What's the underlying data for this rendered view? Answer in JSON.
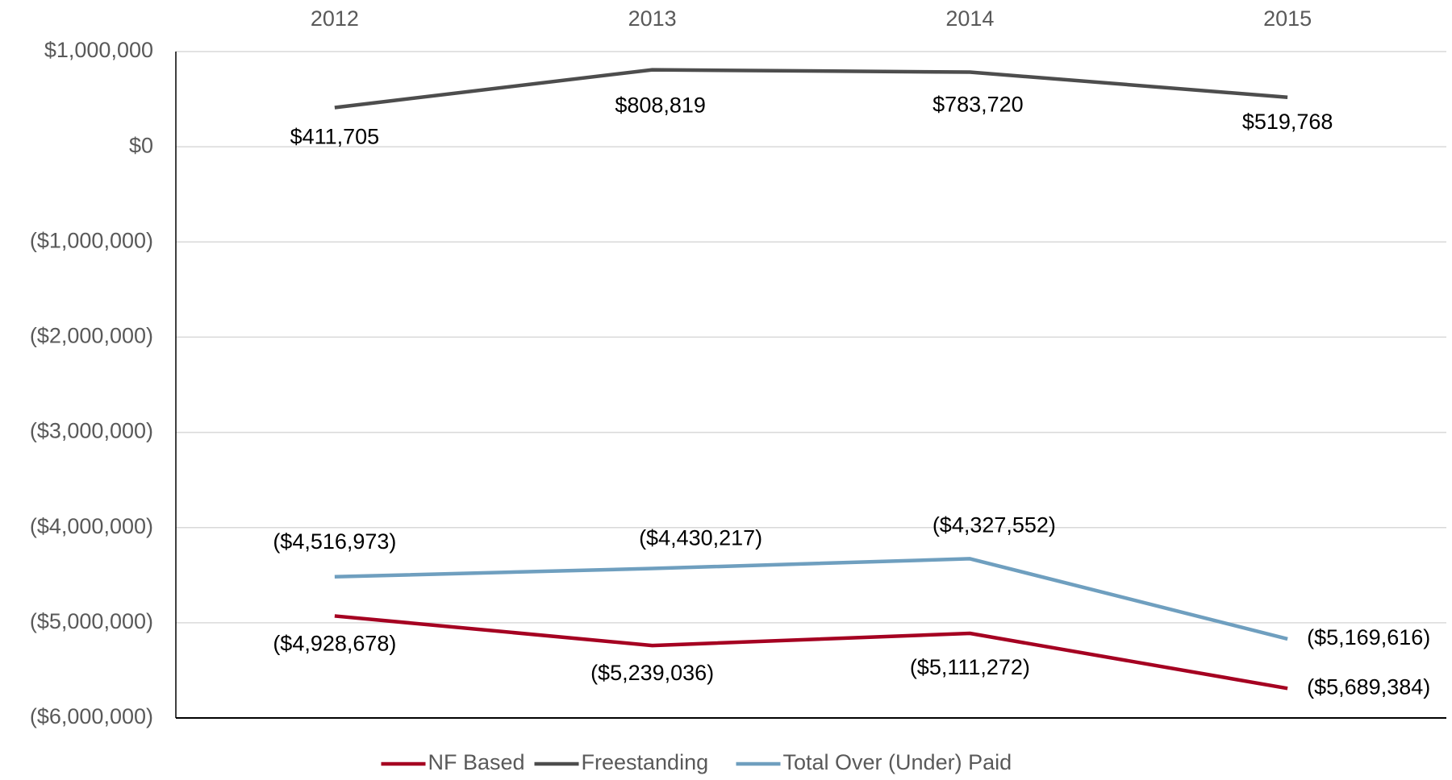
{
  "chart_data": {
    "type": "line",
    "categories": [
      "2012",
      "2013",
      "2014",
      "2015"
    ],
    "series": [
      {
        "name": "NF Based",
        "color": "#a50021",
        "values": [
          -4928678,
          -5239036,
          -5111272,
          -5689384
        ],
        "value_labels": [
          "($4,928,678)",
          "($5,239,036)",
          "($5,111,272)",
          "($5,689,384)"
        ]
      },
      {
        "name": "Freestanding",
        "color": "#4d4d4d",
        "values": [
          411705,
          808819,
          783720,
          519768
        ],
        "value_labels": [
          "$411,705",
          "$808,819",
          "$783,720",
          "$519,768"
        ]
      },
      {
        "name": "Total Over (Under) Paid",
        "color": "#6f9fbf",
        "values": [
          -4516973,
          -4430217,
          -4327552,
          -5169616
        ],
        "value_labels": [
          "($4,516,973)",
          "($4,430,217)",
          "($4,327,552)",
          "($5,169,616)"
        ]
      }
    ],
    "ylim": [
      -6000000,
      1000000
    ],
    "yticks": [
      {
        "value": -6000000,
        "label": "($6,000,000)"
      },
      {
        "value": -5000000,
        "label": "($5,000,000)"
      },
      {
        "value": -4000000,
        "label": "($4,000,000)"
      },
      {
        "value": -3000000,
        "label": "($3,000,000)"
      },
      {
        "value": -2000000,
        "label": "($2,000,000)"
      },
      {
        "value": -1000000,
        "label": "($1,000,000)"
      },
      {
        "value": 0,
        "label": "$0"
      },
      {
        "value": 1000000,
        "label": "$1,000,000"
      }
    ],
    "grid": true,
    "legend": "bottom"
  }
}
